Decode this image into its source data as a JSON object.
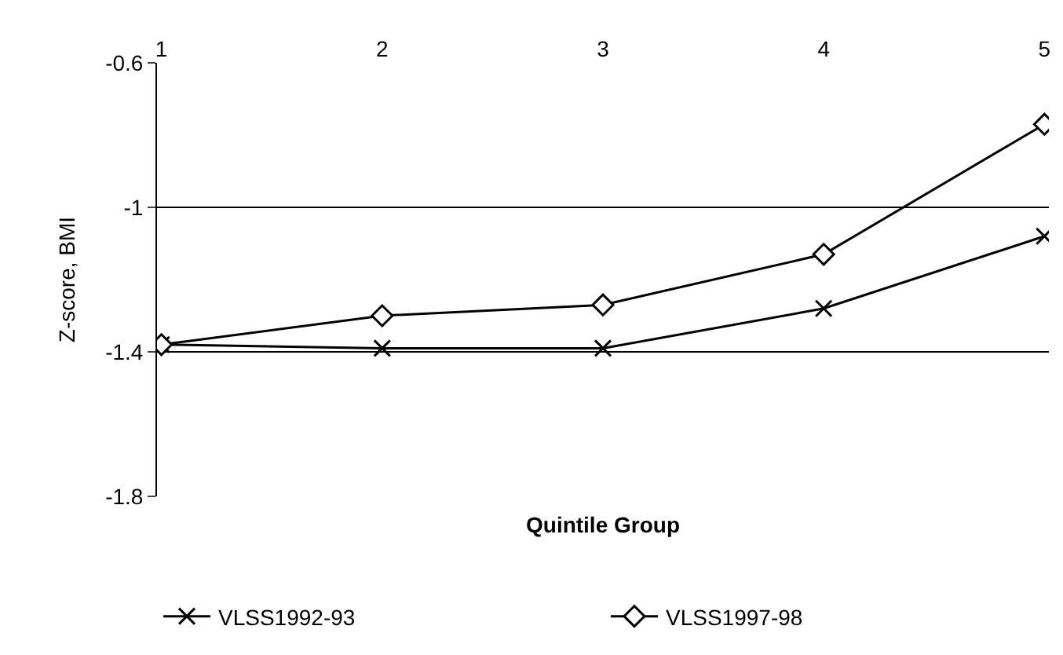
{
  "chart_data": {
    "type": "line",
    "xlabel": "Quintile Group",
    "ylabel": "Z-score, BMI",
    "categories": [
      "1",
      "2",
      "3",
      "4",
      "5"
    ],
    "series": [
      {
        "name": "VLSS1992-93",
        "color": "#000000",
        "marker": "cross",
        "values": [
          -1.38,
          -1.39,
          -1.39,
          -1.28,
          -1.08
        ]
      },
      {
        "name": "VLSS1997-98",
        "color": "#000000",
        "marker": "diamond",
        "values": [
          -1.38,
          -1.3,
          -1.27,
          -1.13,
          -0.77
        ]
      }
    ],
    "ylim": [
      -1.8,
      -0.6
    ],
    "yticks": [
      -1.8,
      -1.4,
      -1,
      -0.6
    ],
    "grid": "y",
    "legend": "bottom",
    "line_style": "solid"
  }
}
